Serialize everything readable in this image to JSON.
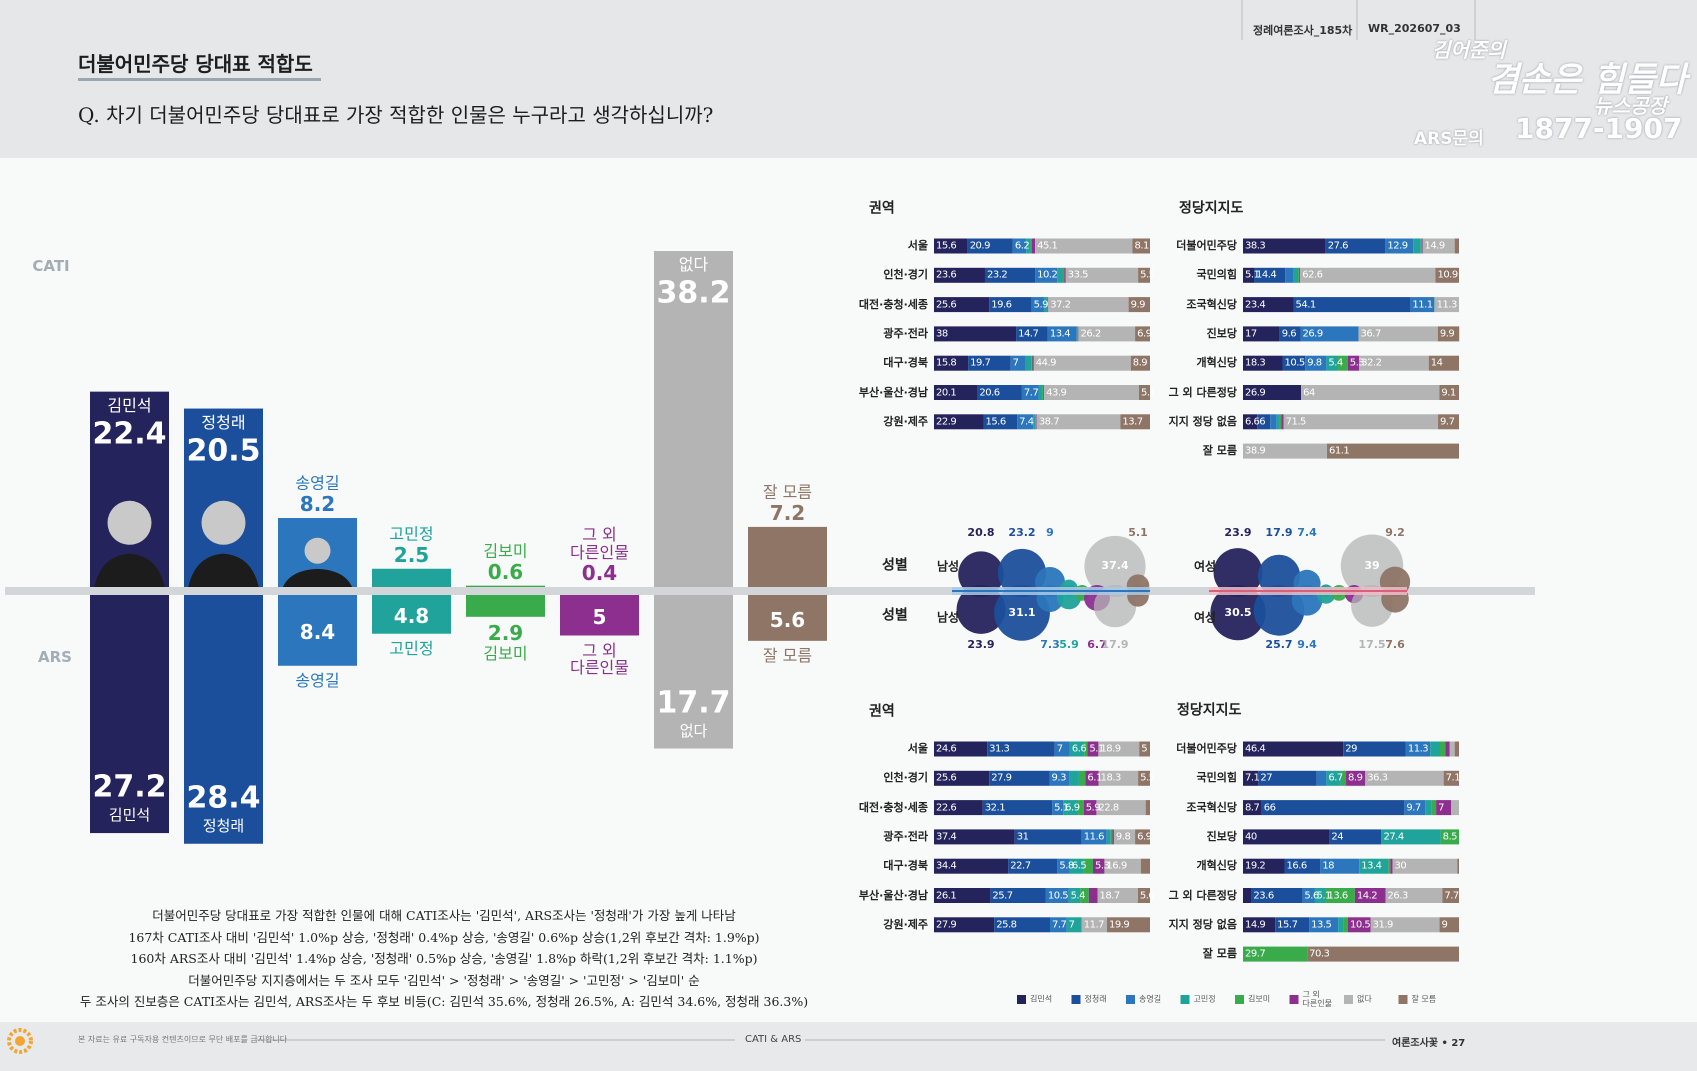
{
  "header": {
    "survey": "정례여론조사_185차",
    "code": "WR_202607_03",
    "title": "더불어민주당 당대표 적합도",
    "question": "Q. 차기 더불어민주당 당대표로 가장 적합한 인물은 누구라고 생각하십니까?",
    "logo": {
      "line1": "김어준의",
      "line2": "겸손은 힘들다",
      "line3": "뉴스공장",
      "contact_label": "ARS문의",
      "contact_number": "1877-1907"
    }
  },
  "main_chart": {
    "categories": [
      "김민석",
      "정청래",
      "송영길",
      "고민정",
      "김보미",
      "그 외 다른인물",
      "없다",
      "잘 모름"
    ],
    "colors": [
      "#25235c",
      "#1b4f9b",
      "#2b76bc",
      "#1fa39b",
      "#3aab4b",
      "#8d2f8f",
      "#b4b4b4",
      "#8e7566"
    ],
    "series": [
      {
        "name": "CATI",
        "values": [
          22.4,
          20.5,
          8.2,
          2.5,
          0.6,
          0.4,
          38.2,
          7.2
        ]
      },
      {
        "name": "ARS",
        "values": [
          27.2,
          28.4,
          8.4,
          4.8,
          2.9,
          5.0,
          17.7,
          5.6
        ]
      }
    ]
  },
  "panels": [
    {
      "title": "권역",
      "rows": [
        {
          "label": "서울",
          "values": [
            15.6,
            20.9,
            6.2,
            2.0,
            0.5,
            1.6,
            45.1,
            8.1
          ]
        },
        {
          "label": "인천·경기",
          "values": [
            23.6,
            23.2,
            10.2,
            2.5,
            0.8,
            0.7,
            33.5,
            5.5
          ]
        },
        {
          "label": "대전·충청·세종",
          "values": [
            25.6,
            19.6,
            5.9,
            1.2,
            0.3,
            0.3,
            37.2,
            9.9
          ]
        },
        {
          "label": "광주·전라",
          "values": [
            38.0,
            14.7,
            13.4,
            0.5,
            0.2,
            0.1,
            26.2,
            6.9
          ]
        },
        {
          "label": "대구·경북",
          "values": [
            15.8,
            19.7,
            7.0,
            2.5,
            0.6,
            0.6,
            44.9,
            8.9
          ]
        },
        {
          "label": "부산·울산·경남",
          "values": [
            20.1,
            20.6,
            7.7,
            1.8,
            0.4,
            0.4,
            43.9,
            5.1
          ]
        },
        {
          "label": "강원·제주",
          "values": [
            22.9,
            15.6,
            7.4,
            1.0,
            0.4,
            0.3,
            38.7,
            13.7
          ]
        }
      ]
    },
    {
      "title": "정당지지도",
      "rows": [
        {
          "label": "더불어민주당",
          "values": [
            38.3,
            27.6,
            12.9,
            3.5,
            0.5,
            0.3,
            14.9,
            2.0
          ]
        },
        {
          "label": "국민의힘",
          "values": [
            5.1,
            14.4,
            4.0,
            2.0,
            0.5,
            0.5,
            62.6,
            10.9
          ]
        },
        {
          "label": "조국혁신당",
          "values": [
            23.4,
            54.1,
            11.1,
            0.1,
            0,
            0,
            11.3,
            0
          ]
        },
        {
          "label": "진보당",
          "values": [
            17.0,
            9.6,
            26.9,
            0,
            0,
            0,
            36.7,
            9.9
          ]
        },
        {
          "label": "개혁신당",
          "values": [
            18.3,
            10.5,
            9.8,
            5.4,
            4.5,
            5.3,
            32.2,
            14.0
          ]
        },
        {
          "label": "그 외 다른정당",
          "values": [
            26.9,
            0,
            0,
            0,
            0,
            0,
            64.0,
            9.1
          ]
        },
        {
          "label": "지지 정당 없음",
          "values": [
            6.6,
            6.0,
            3.0,
            1.5,
            0.7,
            1.0,
            71.5,
            9.7
          ]
        },
        {
          "label": "잘 모름",
          "values": [
            0,
            0,
            0,
            0,
            0,
            0,
            38.9,
            61.1
          ]
        }
      ]
    },
    {
      "title": "권역",
      "rows": [
        {
          "label": "서울",
          "values": [
            24.6,
            31.3,
            7.0,
            6.6,
            1.5,
            5.1,
            18.9,
            5.0
          ]
        },
        {
          "label": "인천·경기",
          "values": [
            25.6,
            27.9,
            9.3,
            4.3,
            3.0,
            6.1,
            18.3,
            5.5
          ]
        },
        {
          "label": "대전·충청·세종",
          "values": [
            22.6,
            32.1,
            5.1,
            6.9,
            2.6,
            5.9,
            22.8,
            2.0
          ]
        },
        {
          "label": "광주·전라",
          "values": [
            37.4,
            31.0,
            11.6,
            1.8,
            0.8,
            0.7,
            9.8,
            6.9
          ]
        },
        {
          "label": "대구·경북",
          "values": [
            34.4,
            22.7,
            5.8,
            6.5,
            4.2,
            5.3,
            16.9,
            4.2
          ]
        },
        {
          "label": "부산·울산·경남",
          "values": [
            26.1,
            25.7,
            10.5,
            5.4,
            4.0,
            4.0,
            18.7,
            5.6
          ]
        },
        {
          "label": "강원·제주",
          "values": [
            27.9,
            25.8,
            7.7,
            7.0,
            0,
            0,
            11.7,
            19.9
          ]
        }
      ]
    },
    {
      "title": "정당지지도",
      "rows": [
        {
          "label": "더불어민주당",
          "values": [
            46.4,
            29.0,
            11.3,
            4.5,
            2.5,
            2.0,
            2.3,
            2.0
          ]
        },
        {
          "label": "국민의힘",
          "values": [
            7.1,
            27.0,
            4.5,
            6.7,
            2.4,
            8.9,
            36.3,
            7.1
          ]
        },
        {
          "label": "조국혁신당",
          "values": [
            8.7,
            66.0,
            9.7,
            3.0,
            2.0,
            7.0,
            3.6,
            0
          ]
        },
        {
          "label": "진보당",
          "values": [
            40.0,
            24.0,
            0.1,
            27.4,
            8.5,
            0,
            0,
            0
          ]
        },
        {
          "label": "개혁신당",
          "values": [
            19.2,
            16.6,
            18.0,
            13.4,
            1.0,
            1.0,
            30.0,
            0.8
          ]
        },
        {
          "label": "그 외 다른정당",
          "values": [
            3.9,
            23.6,
            5.6,
            5.1,
            13.6,
            14.2,
            26.3,
            7.7
          ]
        },
        {
          "label": "지지 정당 없음",
          "values": [
            14.9,
            15.7,
            13.5,
            2.5,
            2.0,
            10.5,
            31.9,
            9.0
          ]
        },
        {
          "label": "잘 모름",
          "values": [
            0,
            0,
            0,
            0,
            29.7,
            0,
            0,
            70.3
          ]
        }
      ]
    }
  ],
  "gender": {
    "title": "성별",
    "groups": [
      {
        "label": "남성",
        "surveys": [
          [
            20.8,
            23.2,
            9.0,
            3.0,
            0.8,
            0.7,
            37.4,
            5.1
          ],
          [
            23.9,
            31.1,
            7.3,
            5.9,
            2.5,
            6.7,
            17.9,
            4.7
          ]
        ]
      },
      {
        "label": "여성",
        "surveys": [
          [
            23.9,
            17.9,
            7.4,
            1.6,
            0.4,
            0.6,
            39.0,
            9.2
          ],
          [
            30.5,
            25.7,
            9.4,
            3.5,
            2.5,
            3.3,
            17.5,
            7.6
          ]
        ]
      }
    ]
  },
  "notes": [
    "더불어민주당 당대표로 가장 적합한 인물에 대해 CATI조사는 '김민석', ARS조사는 '정청래'가 가장 높게 나타남",
    "167차 CATI조사 대비 '김민석' 1.0%p 상승, '정청래' 0.4%p 상승, '송영길' 0.6%p 상승(1,2위 후보간 격차: 1.9%p)",
    "160차 ARS조사 대비 '김민석' 1.4%p 상승, '정청래' 0.5%p 상승, '송영길' 1.8%p 하락(1,2위 후보간 격차: 1.1%p)",
    "더불어민주당 지지층에서는 두 조사 모두 '김민석' > '정청래' > '송영길' > '고민정' > '김보미' 순",
    "두 조사의 진보층은 CATI조사는 김민석, ARS조사는 두 후보 비등(C: 김민석 35.6%, 정청래 26.5%, A: 김민석 34.6%, 정청래 36.3%)"
  ],
  "footer": {
    "disclaimer": "본 자료는 유료 구독자용 컨텐츠이므로 무단 배포를 금지합니다",
    "section": "CATI & ARS",
    "page": "여론조사꽃 • 27"
  }
}
